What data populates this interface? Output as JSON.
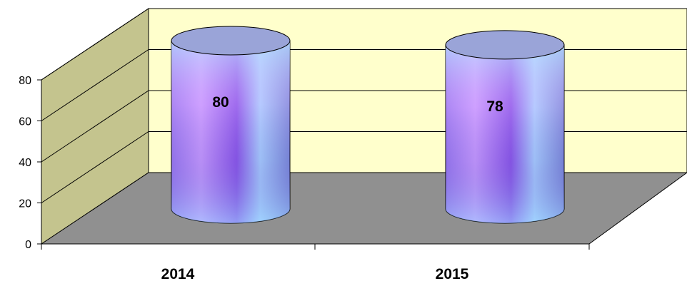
{
  "chart_data": {
    "type": "bar",
    "style": "3d-cylinder",
    "categories": [
      "2014",
      "2015"
    ],
    "values": [
      80,
      78
    ],
    "data_labels": [
      "80",
      "78"
    ],
    "yticks": [
      "0",
      "20",
      "40",
      "60",
      "80"
    ],
    "ylim": [
      0,
      80
    ],
    "grid": true,
    "legend": "none",
    "colors": {
      "wall": "#ffffcc",
      "side_wall": "#c0c08c",
      "floor": "#909090",
      "cyl_light": "#a8d8ff",
      "cyl_mid": "#c890ff",
      "cyl_dark": "#8050e0",
      "cyl_top": "#9aa4d8"
    }
  }
}
